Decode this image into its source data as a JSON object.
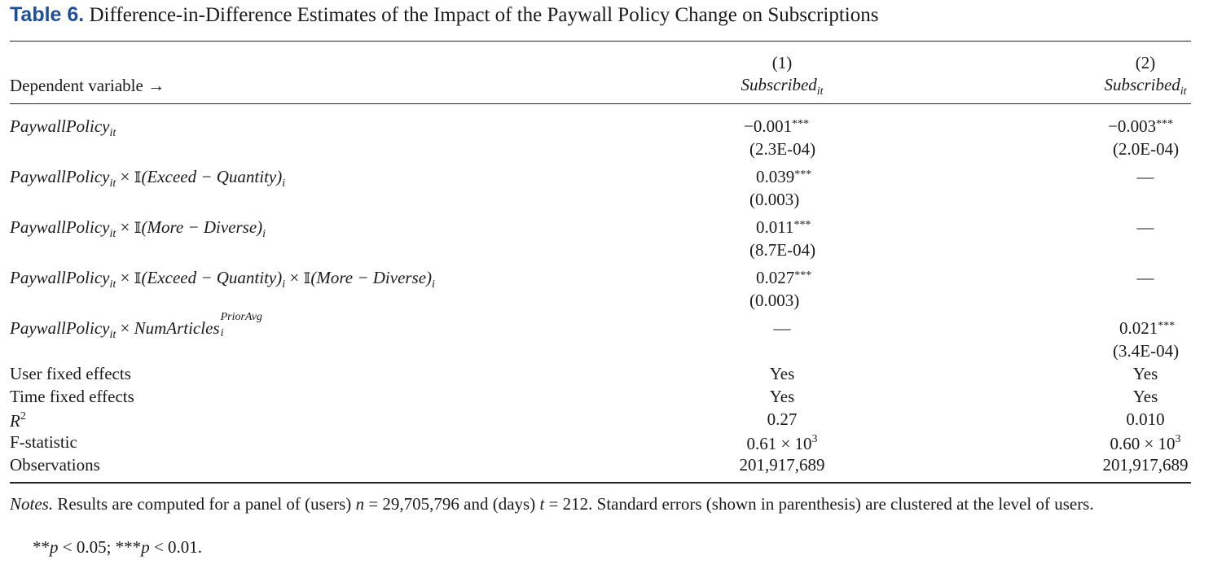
{
  "caption": {
    "label": "Table 6.",
    "title": "Difference-in-Difference Estimates of the Impact of the Paywall Policy Change on Subscriptions"
  },
  "header": {
    "dependent_label": "Dependent variable →",
    "col1_num": "(1)",
    "col2_num": "(2)",
    "col_var": "Subscribed",
    "col_var_sub": "it"
  },
  "rows": {
    "r1": {
      "c1": "−0.001",
      "c1_stars": "***",
      "c1_se": "(2.3E-04)",
      "c2": "−0.003",
      "c2_stars": "***",
      "c2_se": "(2.0E-04)"
    },
    "r2": {
      "c1": "0.039",
      "c1_stars": "***",
      "c1_se": "(0.003)",
      "c2": "—"
    },
    "r3": {
      "c1": "0.011",
      "c1_stars": "***",
      "c1_se": "(8.7E-04)",
      "c2": "—"
    },
    "r4": {
      "c1": "0.027",
      "c1_stars": "***",
      "c1_se": "(0.003)",
      "c2": "—"
    },
    "r5": {
      "c1": "—",
      "c2": "0.021",
      "c2_stars": "***",
      "c2_se": "(3.4E-04)"
    }
  },
  "terms": {
    "paywall": "PaywallPolicy",
    "it": "it",
    "times": "×",
    "indicator": "𝕀",
    "exceed": "(Exceed − Quantity)",
    "more": "(More − Diverse)",
    "i": "i",
    "numarticles": "NumArticles",
    "prioravg": "PriorAvg"
  },
  "stats": {
    "user_fe": {
      "label": "User fixed effects",
      "c1": "Yes",
      "c2": "Yes"
    },
    "time_fe": {
      "label": "Time fixed effects",
      "c1": "Yes",
      "c2": "Yes"
    },
    "r2": {
      "label": "R",
      "label_sup": "2",
      "c1": "0.27",
      "c2": "0.010"
    },
    "fstat": {
      "label": "F-statistic",
      "c1": "0.61 × 10",
      "c1_sup": "3",
      "c2": "0.60 × 10",
      "c2_sup": "3"
    },
    "obs": {
      "label": "Observations",
      "c1": "201,917,689",
      "c2": "201,917,689"
    }
  },
  "notes": {
    "label": "Notes.",
    "text_a": " Results are computed for a panel of (users) ",
    "n_var": "n",
    "text_b": " = 29,705,796 and (days) ",
    "t_var": "t",
    "text_c": " = 212. Standard errors (shown in parenthesis) are clustered at the level of users.",
    "sig_a": "**",
    "p1": "p",
    "sig_b": " < 0.05; ***",
    "p2": "p",
    "sig_c": " < 0.01."
  }
}
